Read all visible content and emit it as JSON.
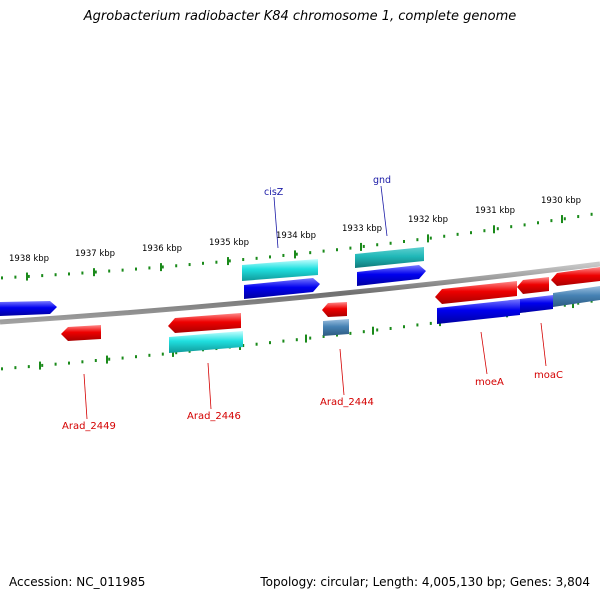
{
  "title": "Agrobacterium radiobacter K84 chromosome 1, complete genome",
  "footer": {
    "accession": "Accession: NC_011985",
    "summary": "Topology: circular; Length: 4,005,130 bp; Genes: 3,804"
  },
  "colors": {
    "forward_strand": "#0000ee",
    "reverse_strand": "#ee0000",
    "rna": "#20e0e0",
    "other": "#4682b4",
    "ruler": "#1a8a1a",
    "backbone": "#808080",
    "label_blue": "#1a1aa6",
    "label_red": "#d40000"
  },
  "ruler_ticks": [
    "1938 kbp",
    "1937 kbp",
    "1936 kbp",
    "1935 kbp",
    "1934 kbp",
    "1933 kbp",
    "1932 kbp",
    "1931 kbp",
    "1930 kbp"
  ],
  "gene_labels_top": [
    "cisZ",
    "gnd"
  ],
  "gene_labels_bottom": [
    "Arad_2449",
    "Arad_2446",
    "Arad_2444",
    "moeA",
    "moaC"
  ]
}
